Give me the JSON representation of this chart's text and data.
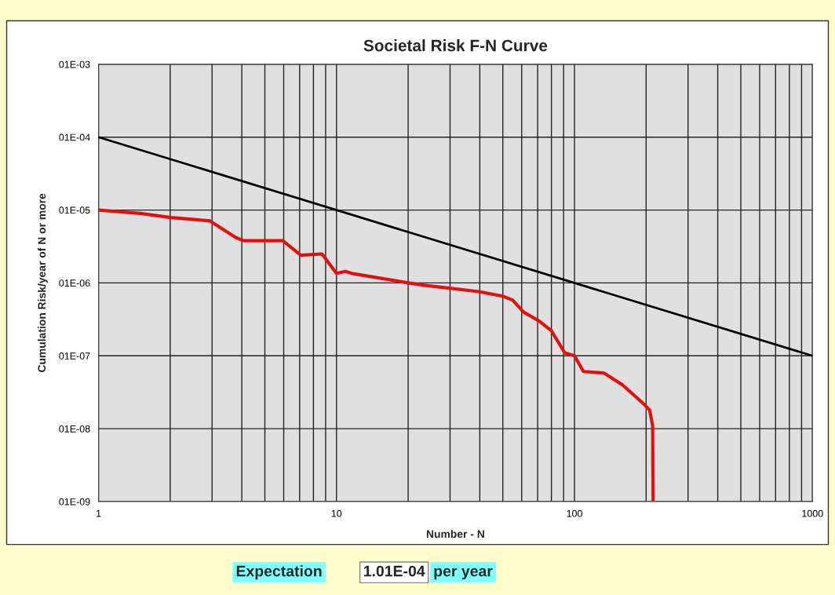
{
  "chart_data": {
    "type": "line",
    "title": "Societal Risk F-N Curve",
    "xlabel": "Number - N",
    "ylabel": "Cumulation Risk/year of N or more",
    "series": [
      {
        "color": "#e0120f",
        "x": [
          1,
          1.5,
          2.01,
          2.94,
          3.77,
          4.07,
          5.0,
          5.95,
          7.08,
          8.69,
          10.0,
          10.9,
          11.6,
          20,
          23.3,
          39.6,
          49.8,
          55,
          61,
          71,
          80,
          91,
          100,
          109,
          133,
          159,
          195,
          207,
          213,
          214
        ],
        "values": [
          1e-05,
          9e-06,
          7.9e-06,
          7.1e-06,
          4.2e-06,
          3.8e-06,
          3.8e-06,
          3.8e-06,
          2.4e-06,
          2.5e-06,
          1.35e-06,
          1.44e-06,
          1.35e-06,
          1e-06,
          9.3e-07,
          7.6e-07,
          6.6e-07,
          5.8e-07,
          4e-07,
          3e-07,
          2.2e-07,
          1.1e-07,
          1e-07,
          6.1e-08,
          5.8e-08,
          4e-08,
          2.2e-08,
          1.8e-08,
          1.1e-08,
          1e-09
        ]
      },
      {
        "color": "#000000",
        "x": [
          1,
          1000
        ],
        "values": [
          0.0001,
          1e-07
        ]
      }
    ],
    "log": "xy",
    "grid": true,
    "marker": "none",
    "line_style": "solid",
    "xlim": [
      1,
      1000
    ],
    "ylim": [
      1e-09,
      0.001
    ],
    "xticks": [
      1,
      {
        "value": 2,
        "label": null
      },
      {
        "value": 3,
        "label": null
      },
      {
        "value": 4,
        "label": null
      },
      {
        "value": 5,
        "label": null
      },
      {
        "value": 6,
        "label": null
      },
      {
        "value": 7,
        "label": null
      },
      {
        "value": 8,
        "label": null
      },
      {
        "value": 9,
        "label": null
      },
      10,
      {
        "value": 20,
        "label": null
      },
      {
        "value": 30,
        "label": null
      },
      {
        "value": 40,
        "label": null
      },
      {
        "value": 50,
        "label": null
      },
      {
        "value": 60,
        "label": null
      },
      {
        "value": 70,
        "label": null
      },
      {
        "value": 80,
        "label": null
      },
      {
        "value": 90,
        "label": null
      },
      100,
      {
        "value": 200,
        "label": null
      },
      {
        "value": 300,
        "label": null
      },
      {
        "value": 400,
        "label": null
      },
      {
        "value": 500,
        "label": null
      },
      {
        "value": 600,
        "label": null
      },
      {
        "value": 700,
        "label": null
      },
      {
        "value": 800,
        "label": null
      },
      {
        "value": 900,
        "label": null
      },
      1000
    ],
    "yticks": [
      {
        "value": 1e-09,
        "label": "01E-09"
      },
      {
        "value": 1e-08,
        "label": "01E-08"
      },
      {
        "value": 1e-07,
        "label": "01E-07"
      },
      {
        "value": 1e-06,
        "label": "01E-06"
      },
      {
        "value": 1e-05,
        "label": "01E-05"
      },
      {
        "value": 0.0001,
        "label": "01E-04"
      },
      {
        "value": 0.001,
        "label": "01E-03"
      }
    ],
    "annotations": [
      "Expectation",
      "1.01E-04",
      "per year"
    ]
  }
}
